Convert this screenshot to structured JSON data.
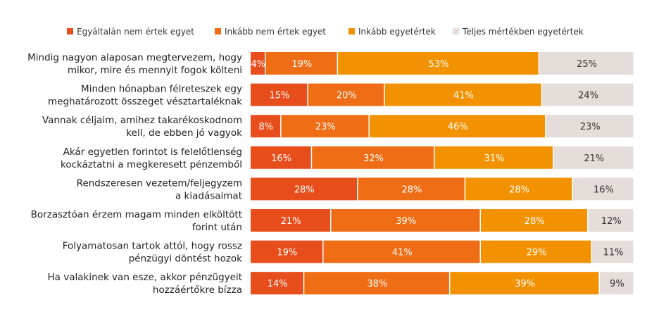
{
  "chart_data": {
    "type": "bar",
    "orientation": "horizontal",
    "stacked": true,
    "percent_stacked": true,
    "legend_position": "top",
    "grid": false,
    "xlim": [
      0,
      100
    ],
    "categories": [
      [
        "Mindig nagyon alaposan megtervezem, hogy",
        "mikor, mire és mennyit fogok költeni"
      ],
      [
        "Minden hónapban félreteszek egy",
        "meghatározott összeget vésztartaléknak"
      ],
      [
        "Vannak céljaim, amihez takarékoskodnom",
        "kell, de ebben jó vagyok"
      ],
      [
        "Akár egyetlen forintot is felelőtlenség",
        "kockáztatni a megkeresett pénzemből"
      ],
      [
        "Rendszeresen vezetem/feljegyzem",
        "a kiadásaimat"
      ],
      [
        "Borzasztóan érzem magam minden elköltött",
        "forint után"
      ],
      [
        "Folyamatosan tartok attól, hogy rossz",
        "pénzügyi döntést hozok"
      ],
      [
        "Ha valakinek van esze, akkor pénzügyeit",
        "hozzáértőkre bízza"
      ]
    ],
    "series": [
      {
        "name": "Egyáltalán nem értek egyet",
        "color": "#e84e1b",
        "label_color": "#ffffff",
        "values": [
          4,
          15,
          8,
          16,
          28,
          21,
          19,
          14
        ]
      },
      {
        "name": "Inkább nem értek egyet",
        "color": "#ef6d14",
        "label_color": "#ffffff",
        "values": [
          19,
          20,
          23,
          32,
          28,
          39,
          41,
          38
        ]
      },
      {
        "name": "Inkább egyetértek",
        "color": "#f39200",
        "label_color": "#ffffff",
        "values": [
          53,
          41,
          46,
          31,
          28,
          28,
          29,
          39
        ]
      },
      {
        "name": "Teljes mértékben egyetértek",
        "color": "#e4ddd9",
        "label_color": "#333333",
        "values": [
          25,
          24,
          23,
          21,
          16,
          12,
          11,
          9
        ]
      }
    ]
  }
}
